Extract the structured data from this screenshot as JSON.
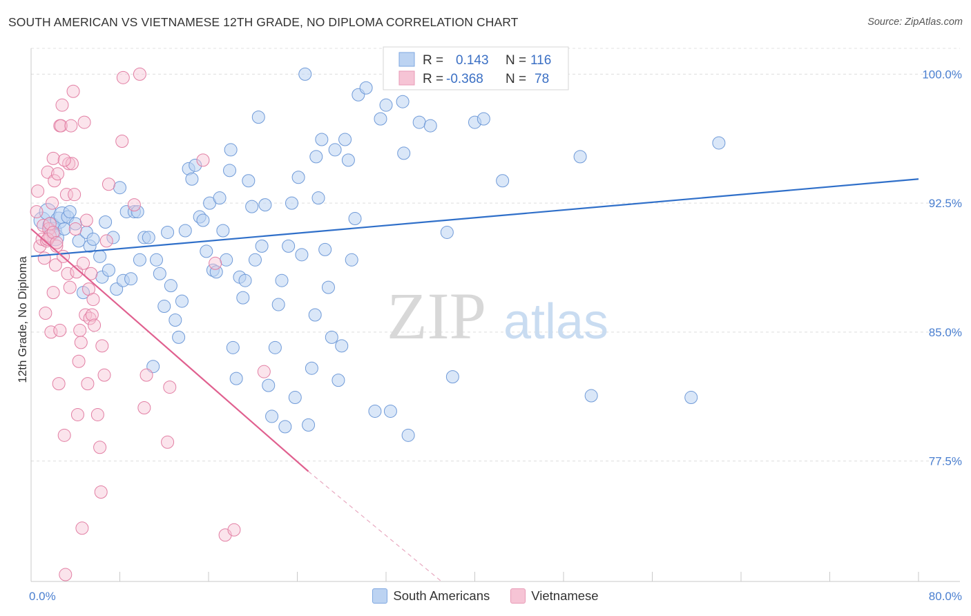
{
  "title": "SOUTH AMERICAN VS VIETNAMESE 12TH GRADE, NO DIPLOMA CORRELATION CHART",
  "source": "Source: ZipAtlas.com",
  "watermark": {
    "zip": "ZIP",
    "atlas": "atlas"
  },
  "legend_top": {
    "r_label": "R =",
    "n_label": "N =",
    "south": {
      "r": "0.143",
      "n": "116"
    },
    "viet": {
      "r": "-0.368",
      "n": "78"
    }
  },
  "legend_bottom": {
    "south": "South Americans",
    "viet": "Vietnamese"
  },
  "colors": {
    "blue": "#4a86d8",
    "blue_fill": "#bcd3f2",
    "pink": "#e86a98",
    "pink_fill": "#f6c4d5"
  },
  "chart_data": {
    "type": "scatter",
    "title": "SOUTH AMERICAN VS VIETNAMESE 12TH GRADE, NO DIPLOMA CORRELATION CHART",
    "xlabel": "",
    "ylabel": "12th Grade, No Diploma",
    "xlim": [
      0,
      80
    ],
    "ylim": [
      70.5,
      101.5
    ],
    "x_tick_labels": [
      "0.0%",
      "80.0%"
    ],
    "y_ticks": [
      77.5,
      85.0,
      92.5,
      100.0
    ],
    "y_tick_labels": [
      "77.5%",
      "85.0%",
      "92.5%",
      "100.0%"
    ],
    "grid": true,
    "legend_position": "top-center",
    "series": [
      {
        "name": "South Americans",
        "color": "#4a86d8",
        "trend": {
          "x": [
            0,
            80
          ],
          "y": [
            89.4,
            93.9
          ]
        },
        "points": [
          [
            1.0,
            91.5
          ],
          [
            1.5,
            92.0
          ],
          [
            1.8,
            91.2
          ],
          [
            2.0,
            90.9
          ],
          [
            2.2,
            90.5
          ],
          [
            2.5,
            91.5
          ],
          [
            2.8,
            91.8
          ],
          [
            3.0,
            91.0
          ],
          [
            3.3,
            91.7
          ],
          [
            3.5,
            92.0
          ],
          [
            4.0,
            91.3
          ],
          [
            4.3,
            90.3
          ],
          [
            4.7,
            87.3
          ],
          [
            5.0,
            90.8
          ],
          [
            5.3,
            90.0
          ],
          [
            5.6,
            90.4
          ],
          [
            6.2,
            89.4
          ],
          [
            6.4,
            88.2
          ],
          [
            6.7,
            91.4
          ],
          [
            7.0,
            88.6
          ],
          [
            7.4,
            90.5
          ],
          [
            7.7,
            87.5
          ],
          [
            8.0,
            93.4
          ],
          [
            8.3,
            88.0
          ],
          [
            8.6,
            92.0
          ],
          [
            9.0,
            88.1
          ],
          [
            9.3,
            92.0
          ],
          [
            9.6,
            92.0
          ],
          [
            9.8,
            89.2
          ],
          [
            10.2,
            90.5
          ],
          [
            10.6,
            90.5
          ],
          [
            11.0,
            83.0
          ],
          [
            11.3,
            89.2
          ],
          [
            11.6,
            88.4
          ],
          [
            12.0,
            86.5
          ],
          [
            12.3,
            90.8
          ],
          [
            12.6,
            87.7
          ],
          [
            13.0,
            85.7
          ],
          [
            13.3,
            84.7
          ],
          [
            13.6,
            86.8
          ],
          [
            13.9,
            90.9
          ],
          [
            14.2,
            94.5
          ],
          [
            14.5,
            93.9
          ],
          [
            14.8,
            94.7
          ],
          [
            15.2,
            91.7
          ],
          [
            15.5,
            91.5
          ],
          [
            15.8,
            89.7
          ],
          [
            16.1,
            92.5
          ],
          [
            16.4,
            88.6
          ],
          [
            16.7,
            88.5
          ],
          [
            17.0,
            92.8
          ],
          [
            17.3,
            90.9
          ],
          [
            17.6,
            89.2
          ],
          [
            17.9,
            94.4
          ],
          [
            18.2,
            84.1
          ],
          [
            18.5,
            82.3
          ],
          [
            18.8,
            88.2
          ],
          [
            19.1,
            87.0
          ],
          [
            19.3,
            88.0
          ],
          [
            19.6,
            93.8
          ],
          [
            19.9,
            92.3
          ],
          [
            20.2,
            89.2
          ],
          [
            20.5,
            97.5
          ],
          [
            20.8,
            90.0
          ],
          [
            21.1,
            92.4
          ],
          [
            21.4,
            81.9
          ],
          [
            21.7,
            80.1
          ],
          [
            22.0,
            84.1
          ],
          [
            22.3,
            86.6
          ],
          [
            22.6,
            88.0
          ],
          [
            22.9,
            79.5
          ],
          [
            23.2,
            90.0
          ],
          [
            23.5,
            92.5
          ],
          [
            23.8,
            81.2
          ],
          [
            24.1,
            94.0
          ],
          [
            24.4,
            89.5
          ],
          [
            24.7,
            100.0
          ],
          [
            25.0,
            79.6
          ],
          [
            25.3,
            82.9
          ],
          [
            25.6,
            86.0
          ],
          [
            25.9,
            92.8
          ],
          [
            26.2,
            96.2
          ],
          [
            26.5,
            89.8
          ],
          [
            26.8,
            87.6
          ],
          [
            27.1,
            84.7
          ],
          [
            27.4,
            95.6
          ],
          [
            27.7,
            82.2
          ],
          [
            28.0,
            84.2
          ],
          [
            28.3,
            96.2
          ],
          [
            28.6,
            95.0
          ],
          [
            28.9,
            89.2
          ],
          [
            29.2,
            91.6
          ],
          [
            29.5,
            98.8
          ],
          [
            30.2,
            99.2
          ],
          [
            31.0,
            80.4
          ],
          [
            31.5,
            97.4
          ],
          [
            32.0,
            98.2
          ],
          [
            32.5,
            100.0
          ],
          [
            33.5,
            98.4
          ],
          [
            35.0,
            97.2
          ],
          [
            36.0,
            97.0
          ],
          [
            37.5,
            90.8
          ],
          [
            38.0,
            82.4
          ],
          [
            40.0,
            97.2
          ],
          [
            40.8,
            97.4
          ],
          [
            42.0,
            99.9
          ],
          [
            42.5,
            93.8
          ],
          [
            49.5,
            95.2
          ],
          [
            50.5,
            81.3
          ],
          [
            59.5,
            81.2
          ],
          [
            62.0,
            96.0
          ],
          [
            32.4,
            80.4
          ],
          [
            34.0,
            79.0
          ],
          [
            25.7,
            95.2
          ],
          [
            33.6,
            95.4
          ],
          [
            18.0,
            95.6
          ]
        ]
      },
      {
        "name": "Vietnamese",
        "color": "#e86a98",
        "trend": {
          "x": [
            0,
            25
          ],
          "y": [
            91.0,
            76.9
          ]
        },
        "trend_dashed": {
          "x": [
            25,
            37
          ],
          "y": [
            76.9,
            70.5
          ]
        },
        "points": [
          [
            0.5,
            92.0
          ],
          [
            0.6,
            93.2
          ],
          [
            0.8,
            90.0
          ],
          [
            1.0,
            90.4
          ],
          [
            1.1,
            91.2
          ],
          [
            1.2,
            89.3
          ],
          [
            1.3,
            86.1
          ],
          [
            1.4,
            90.3
          ],
          [
            1.5,
            94.3
          ],
          [
            1.6,
            91.0
          ],
          [
            1.7,
            90.6
          ],
          [
            1.8,
            85.0
          ],
          [
            1.9,
            92.5
          ],
          [
            2.0,
            87.3
          ],
          [
            2.0,
            95.1
          ],
          [
            2.1,
            93.8
          ],
          [
            2.2,
            88.9
          ],
          [
            2.3,
            90.0
          ],
          [
            2.4,
            94.2
          ],
          [
            2.5,
            82.0
          ],
          [
            2.6,
            97.0
          ],
          [
            2.7,
            97.0
          ],
          [
            2.8,
            98.2
          ],
          [
            2.9,
            89.4
          ],
          [
            3.0,
            79.0
          ],
          [
            3.1,
            70.9
          ],
          [
            3.2,
            93.0
          ],
          [
            3.3,
            88.4
          ],
          [
            3.4,
            94.8
          ],
          [
            3.5,
            87.6
          ],
          [
            3.6,
            97.0
          ],
          [
            3.7,
            94.8
          ],
          [
            3.8,
            99.0
          ],
          [
            3.9,
            93.0
          ],
          [
            4.0,
            91.0
          ],
          [
            4.1,
            88.5
          ],
          [
            4.2,
            80.2
          ],
          [
            4.3,
            83.3
          ],
          [
            4.4,
            85.1
          ],
          [
            4.5,
            84.4
          ],
          [
            4.6,
            73.6
          ],
          [
            4.7,
            89.0
          ],
          [
            4.8,
            97.2
          ],
          [
            4.9,
            86.0
          ],
          [
            5.0,
            91.5
          ],
          [
            5.1,
            82.0
          ],
          [
            5.2,
            87.5
          ],
          [
            5.3,
            85.8
          ],
          [
            5.4,
            88.4
          ],
          [
            5.5,
            86.0
          ],
          [
            5.6,
            86.9
          ],
          [
            5.7,
            85.4
          ],
          [
            6.0,
            80.2
          ],
          [
            6.2,
            78.3
          ],
          [
            6.3,
            75.7
          ],
          [
            6.4,
            84.2
          ],
          [
            6.6,
            82.5
          ],
          [
            6.8,
            90.3
          ],
          [
            7.0,
            93.6
          ],
          [
            8.2,
            96.1
          ],
          [
            8.3,
            99.8
          ],
          [
            9.3,
            92.4
          ],
          [
            9.8,
            100.0
          ],
          [
            10.2,
            80.6
          ],
          [
            10.4,
            82.5
          ],
          [
            12.3,
            78.6
          ],
          [
            12.5,
            81.8
          ],
          [
            15.5,
            95.0
          ],
          [
            16.6,
            89.0
          ],
          [
            17.5,
            73.2
          ],
          [
            18.3,
            73.5
          ],
          [
            21.0,
            82.7
          ],
          [
            1.5,
            90.4
          ],
          [
            1.7,
            91.3
          ],
          [
            2.0,
            90.8
          ],
          [
            2.3,
            90.2
          ],
          [
            2.6,
            85.1
          ],
          [
            3.0,
            95.0
          ]
        ]
      }
    ]
  }
}
